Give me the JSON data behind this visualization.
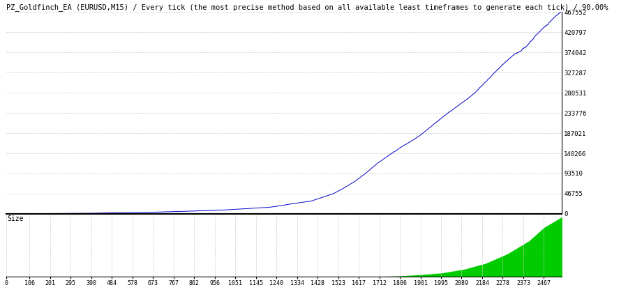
{
  "title": "PZ_Goldfinch_EA (EURUSD,M15) / Every tick (the most precise method based on all available least timeframes to generate each tick) / 90.00%",
  "title_fontsize": 7.5,
  "background_color": "#ffffff",
  "plot_bg_color": "#ffffff",
  "grid_color": "#cccccc",
  "line_color": "#0000cc",
  "fill_color": "#00cc00",
  "x_min": 0,
  "x_max": 2550,
  "y_main_min": 0,
  "y_main_max": 467552,
  "y_main_ticks": [
    0,
    46755,
    93510,
    140266,
    187021,
    233776,
    280531,
    327287,
    374042,
    420797,
    467552
  ],
  "y_sub_label": "Size",
  "x_tick_labels": [
    "0",
    "106",
    "201",
    "295",
    "390",
    "484",
    "578",
    "673",
    "767",
    "862",
    "956",
    "1051",
    "1145",
    "1240",
    "1334",
    "1428",
    "1523",
    "1617",
    "1712",
    "1806",
    "1901",
    "1995",
    "2089",
    "2184",
    "2278",
    "2373",
    "2467"
  ],
  "x_tick_positions": [
    0,
    106,
    201,
    295,
    390,
    484,
    578,
    673,
    767,
    862,
    956,
    1051,
    1145,
    1240,
    1334,
    1428,
    1523,
    1617,
    1712,
    1806,
    1901,
    1995,
    2089,
    2184,
    2278,
    2373,
    2467
  ],
  "equity_control_x": [
    0,
    200,
    400,
    600,
    800,
    1000,
    1200,
    1400,
    1500,
    1550,
    1600,
    1650,
    1700,
    1750,
    1800,
    1850,
    1900,
    1950,
    2000,
    2050,
    2100,
    2150,
    2200,
    2250,
    2300,
    2350,
    2400,
    2450,
    2500,
    2550
  ],
  "equity_control_y": [
    0,
    500,
    1500,
    3000,
    5500,
    9000,
    15000,
    30000,
    46755,
    60000,
    75000,
    93510,
    115000,
    133000,
    150000,
    165000,
    180000,
    200000,
    220000,
    240000,
    260000,
    280531,
    307000,
    330000,
    355000,
    375000,
    395000,
    420797,
    445000,
    467552
  ],
  "size_start_x": 1700,
  "size_control_x": [
    1700,
    1800,
    1900,
    2000,
    2100,
    2200,
    2300,
    2400,
    2467,
    2550
  ],
  "size_control_y": [
    0.0,
    0.01,
    0.03,
    0.06,
    0.12,
    0.22,
    0.38,
    0.6,
    0.82,
    1.0
  ]
}
